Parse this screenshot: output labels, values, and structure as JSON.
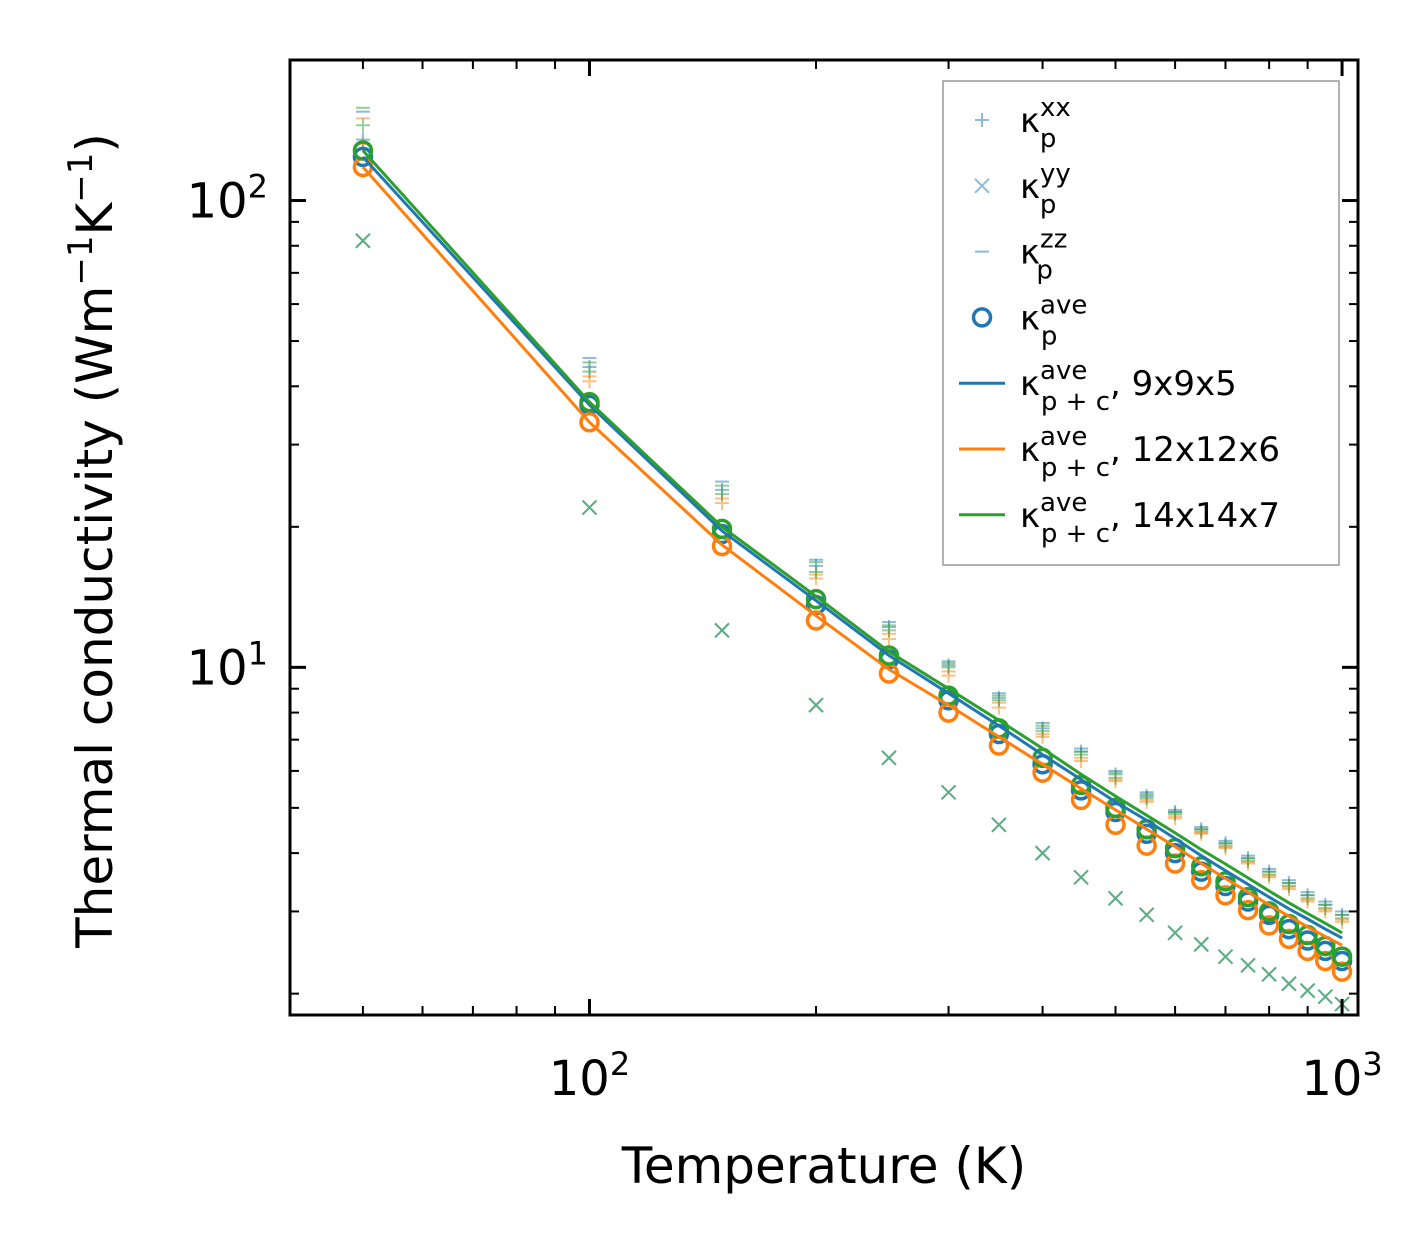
{
  "chart_data": {
    "type": "scatter",
    "xscale": "log",
    "yscale": "log",
    "xlim": [
      40,
      1050
    ],
    "ylim": [
      1.8,
      200
    ],
    "xlabel": "Temperature (K)",
    "ylabel": "Thermal conductivity (Wm⁻¹K⁻¹)",
    "xticks": [
      {
        "value": 100,
        "base": "10",
        "exp": "2"
      },
      {
        "value": 1000,
        "base": "10",
        "exp": "3"
      }
    ],
    "yticks": [
      {
        "value": 10,
        "base": "10",
        "exp": "1"
      },
      {
        "value": 100,
        "base": "10",
        "exp": "2"
      }
    ],
    "x": [
      50,
      100,
      150,
      200,
      250,
      300,
      350,
      400,
      450,
      500,
      550,
      600,
      650,
      700,
      750,
      800,
      850,
      900,
      950,
      1000
    ],
    "colors": {
      "c9": "#1f77b4",
      "c12": "#ff7f0e",
      "c14": "#2ca02c"
    },
    "series": [
      {
        "name": "kp_xx 9x9x5",
        "marker": "plus",
        "color": "#1f77b4",
        "values": [
          135,
          44,
          24,
          16.5,
          12.2,
          10.1,
          8.6,
          7.4,
          6.6,
          5.9,
          5.3,
          4.9,
          4.5,
          4.2,
          3.9,
          3.65,
          3.45,
          3.25,
          3.1,
          2.95
        ]
      },
      {
        "name": "kp_xx 12x12x6",
        "marker": "plus",
        "color": "#ff7f0e",
        "values": [
          132,
          41,
          22.5,
          15.5,
          11.5,
          9.6,
          8.2,
          7.1,
          6.3,
          5.7,
          5.15,
          4.75,
          4.4,
          4.1,
          3.8,
          3.55,
          3.35,
          3.15,
          3.0,
          2.85
        ]
      },
      {
        "name": "kp_xx 14x14x7",
        "marker": "plus",
        "color": "#2ca02c",
        "values": [
          145,
          43,
          23.5,
          16,
          12,
          10,
          8.5,
          7.3,
          6.5,
          5.8,
          5.25,
          4.85,
          4.45,
          4.15,
          3.85,
          3.6,
          3.4,
          3.2,
          3.05,
          2.9
        ]
      },
      {
        "name": "kp_yy",
        "marker": "cross",
        "color": "#1f77b4",
        "values": [
          82,
          22,
          12,
          8.3,
          6.4,
          5.4,
          4.6,
          4.0,
          3.55,
          3.2,
          2.95,
          2.7,
          2.55,
          2.4,
          2.3,
          2.2,
          2.1,
          2.03,
          1.97,
          1.9
        ]
      },
      {
        "name": "kp_yy 14x14x7",
        "marker": "cross",
        "color": "#2ca02c",
        "values": [
          82,
          22,
          12,
          8.3,
          6.4,
          5.4,
          4.6,
          4.0,
          3.55,
          3.2,
          2.95,
          2.7,
          2.55,
          2.4,
          2.3,
          2.2,
          2.1,
          2.03,
          1.97,
          1.9
        ]
      },
      {
        "name": "kp_zz 9x9x5",
        "marker": "minus",
        "color": "#1f77b4",
        "values": [
          155,
          46,
          25,
          17,
          12.5,
          10.3,
          8.8,
          7.6,
          6.7,
          6.0,
          5.4,
          4.95,
          4.55,
          4.25,
          3.95,
          3.7,
          3.5,
          3.3,
          3.15,
          3.0
        ]
      },
      {
        "name": "kp_zz 12x12x6",
        "marker": "minus",
        "color": "#ff7f0e",
        "values": [
          150,
          42,
          23,
          15.8,
          11.8,
          9.8,
          8.4,
          7.2,
          6.4,
          5.75,
          5.2,
          4.8,
          4.42,
          4.12,
          3.83,
          3.58,
          3.38,
          3.18,
          3.03,
          2.88
        ]
      },
      {
        "name": "kp_zz 14x14x7",
        "marker": "minus",
        "color": "#2ca02c",
        "values": [
          158,
          45,
          24.5,
          16.8,
          12.3,
          10.2,
          8.7,
          7.5,
          6.6,
          5.95,
          5.35,
          4.9,
          4.5,
          4.2,
          3.9,
          3.65,
          3.45,
          3.25,
          3.1,
          2.95
        ]
      },
      {
        "name": "kp_ave 9x9x5",
        "marker": "circle",
        "color": "#1f77b4",
        "values": [
          124,
          36.5,
          19.3,
          13.6,
          10.4,
          8.5,
          7.2,
          6.2,
          5.45,
          4.9,
          4.4,
          4.0,
          3.65,
          3.4,
          3.15,
          2.95,
          2.75,
          2.6,
          2.47,
          2.35
        ]
      },
      {
        "name": "kp_ave 12x12x6",
        "marker": "circle",
        "color": "#ff7f0e",
        "values": [
          118,
          33.5,
          18.2,
          12.6,
          9.7,
          8.0,
          6.8,
          5.95,
          5.2,
          4.6,
          4.15,
          3.8,
          3.5,
          3.25,
          3.02,
          2.8,
          2.62,
          2.47,
          2.35,
          2.23
        ]
      },
      {
        "name": "kp_ave 14x14x7",
        "marker": "circle",
        "color": "#2ca02c",
        "values": [
          128,
          37,
          19.8,
          14,
          10.6,
          8.7,
          7.4,
          6.4,
          5.6,
          5.0,
          4.5,
          4.1,
          3.75,
          3.48,
          3.22,
          3.0,
          2.82,
          2.67,
          2.53,
          2.4
        ]
      },
      {
        "name": "kp+c_ave 9x9x5",
        "marker": "line",
        "color": "#1f77b4",
        "values": [
          124,
          36.5,
          19.6,
          13.9,
          10.6,
          8.8,
          7.5,
          6.5,
          5.75,
          5.15,
          4.7,
          4.3,
          3.95,
          3.67,
          3.43,
          3.22,
          3.04,
          2.89,
          2.75,
          2.63
        ]
      },
      {
        "name": "kp+c_ave 12x12x6",
        "marker": "line",
        "color": "#ff7f0e",
        "values": [
          118,
          33.5,
          18.3,
          12.9,
          9.9,
          8.3,
          7.1,
          6.2,
          5.5,
          4.95,
          4.5,
          4.13,
          3.8,
          3.53,
          3.3,
          3.1,
          2.93,
          2.78,
          2.65,
          2.54
        ]
      },
      {
        "name": "kp+c_ave 14x14x7",
        "marker": "line",
        "color": "#2ca02c",
        "values": [
          128,
          37,
          20,
          14.2,
          10.8,
          9.0,
          7.7,
          6.7,
          5.9,
          5.3,
          4.82,
          4.42,
          4.07,
          3.79,
          3.54,
          3.32,
          3.13,
          2.97,
          2.83,
          2.7
        ]
      }
    ],
    "legend": {
      "position": "top-right",
      "items": [
        {
          "marker": "plus",
          "color": "#1f77b4",
          "sym": "κ",
          "sup": "xx",
          "sub": "p",
          "tail": ""
        },
        {
          "marker": "cross",
          "color": "#1f77b4",
          "sym": "κ",
          "sup": "yy",
          "sub": "p",
          "tail": ""
        },
        {
          "marker": "minus",
          "color": "#1f77b4",
          "sym": "κ",
          "sup": "zz",
          "sub": "p",
          "tail": ""
        },
        {
          "marker": "circle",
          "color": "#1f77b4",
          "sym": "κ",
          "sup": "ave",
          "sub": "p",
          "tail": ""
        },
        {
          "marker": "line",
          "color": "#1f77b4",
          "sym": "κ",
          "sup": "ave",
          "sub": "p + c",
          "tail": ", 9x9x5"
        },
        {
          "marker": "line",
          "color": "#ff7f0e",
          "sym": "κ",
          "sup": "ave",
          "sub": "p + c",
          "tail": ", 12x12x6"
        },
        {
          "marker": "line",
          "color": "#2ca02c",
          "sym": "κ",
          "sup": "ave",
          "sub": "p + c",
          "tail": ", 14x14x7"
        }
      ]
    }
  }
}
